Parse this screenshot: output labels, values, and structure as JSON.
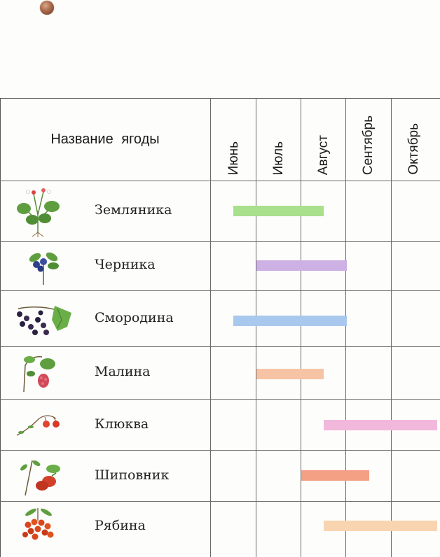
{
  "table": {
    "header_title": "Название   ягоды",
    "months": [
      "Июнь",
      "Июль",
      "Август",
      "Сентябрь",
      "Октябрь"
    ]
  },
  "berries": [
    {
      "name": "Земляника",
      "icon": "strawberry-plant-icon",
      "start_month": 0.5,
      "end_month": 2.5,
      "color": "#a8e08c"
    },
    {
      "name": "Черника",
      "icon": "blueberry-plant-icon",
      "start_month": 1.0,
      "end_month": 3.0,
      "color": "#cdb0e4"
    },
    {
      "name": "Смородина",
      "icon": "currant-plant-icon",
      "start_month": 0.5,
      "end_month": 3.0,
      "color": "#a8c8ee"
    },
    {
      "name": "Малина",
      "icon": "raspberry-plant-icon",
      "start_month": 1.0,
      "end_month": 2.5,
      "color": "#f6c4a4"
    },
    {
      "name": "Клюква",
      "icon": "cranberry-plant-icon",
      "start_month": 2.5,
      "end_month": 5.0,
      "color": "#f2b8dc"
    },
    {
      "name": "Шиповник",
      "icon": "rosehip-plant-icon",
      "start_month": 2.0,
      "end_month": 3.5,
      "color": "#f3a085"
    },
    {
      "name": "Рябина",
      "icon": "rowan-plant-icon",
      "start_month": 2.5,
      "end_month": 5.0,
      "color": "#f8d4b0"
    }
  ]
}
